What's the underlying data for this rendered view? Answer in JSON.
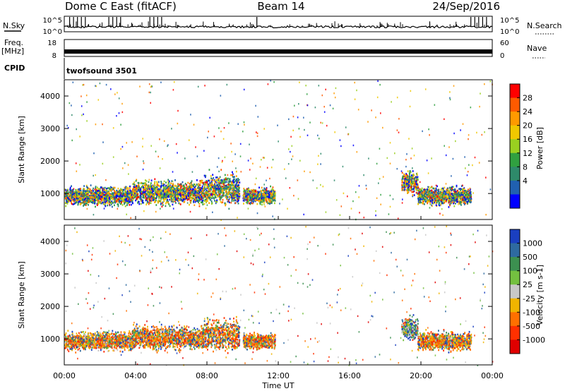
{
  "header": {
    "radar": "Dome C East (fitACF)",
    "beam": "Beam 14",
    "date": "24/Sep/2016"
  },
  "panels": {
    "nsky": {
      "label": "N.Sky",
      "ticks": [
        "10^5",
        "10^0"
      ]
    },
    "nsearch": {
      "label": "N.Search",
      "ticks": [
        "10^5",
        "10^0"
      ]
    },
    "freq": {
      "label_line1": "Freq.",
      "label_line2": "[MHz]",
      "ticks": [
        "18",
        "8"
      ]
    },
    "nave": {
      "label": "Nave",
      "ticks": [
        "60",
        "0"
      ]
    },
    "cpid": {
      "label": "CPID",
      "value": "twofsound 3501"
    }
  },
  "xaxis": {
    "label": "Time UT",
    "ticks": [
      "00:00",
      "04:00",
      "08:00",
      "12:00",
      "16:00",
      "20:00",
      "00:00"
    ],
    "range_hours": [
      0,
      24
    ]
  },
  "chart_data": [
    {
      "type": "heatmap",
      "ylabel": "Slant Range [km]",
      "yticks": [
        1000,
        2000,
        3000,
        4000
      ],
      "ylim": [
        200,
        4500
      ],
      "colorbar": {
        "label": "Power [dB]",
        "ticks": [
          "28",
          "24",
          "20",
          "16",
          "12",
          "8",
          "4"
        ],
        "colors": [
          "#ff0000",
          "#ff5a00",
          "#ff9a00",
          "#f0c800",
          "#9ad020",
          "#30a040",
          "#2e8a6a",
          "#2060b0",
          "#0000ff"
        ]
      },
      "scatter_regions": [
        {
          "t_start": 0.0,
          "t_end": 3.8,
          "range_center": 950,
          "range_width": 350
        },
        {
          "t_start": 3.8,
          "t_end": 7.8,
          "range_center": 1050,
          "range_width": 450
        },
        {
          "t_start": 7.8,
          "t_end": 9.8,
          "range_center": 1150,
          "range_width": 600
        },
        {
          "t_start": 10.0,
          "t_end": 11.8,
          "range_center": 950,
          "range_width": 300
        },
        {
          "t_start": 18.9,
          "t_end": 19.8,
          "range_center": 1350,
          "range_width": 450
        },
        {
          "t_start": 19.8,
          "t_end": 22.8,
          "range_center": 950,
          "range_width": 350
        }
      ]
    },
    {
      "type": "heatmap",
      "ylabel": "Slant Range [km]",
      "yticks": [
        1000,
        2000,
        3000,
        4000
      ],
      "ylim": [
        200,
        4500
      ],
      "colorbar": {
        "label": "Velocity [m s-1]",
        "ticks": [
          "1000",
          "500",
          "100",
          "25",
          "-25",
          "-100",
          "-500",
          "-1000"
        ],
        "colors": [
          "#1a3fc0",
          "#2e6aa0",
          "#3c9050",
          "#74c040",
          "#c8c8c8",
          "#f0b400",
          "#ff7000",
          "#ff3000",
          "#e00000"
        ]
      },
      "scatter_regions": [
        {
          "t_start": 0.0,
          "t_end": 3.8,
          "range_center": 950,
          "range_width": 350
        },
        {
          "t_start": 3.8,
          "t_end": 7.8,
          "range_center": 1050,
          "range_width": 450
        },
        {
          "t_start": 7.8,
          "t_end": 9.8,
          "range_center": 1150,
          "range_width": 600
        },
        {
          "t_start": 10.0,
          "t_end": 11.8,
          "range_center": 950,
          "range_width": 300
        },
        {
          "t_start": 18.9,
          "t_end": 19.8,
          "range_center": 1350,
          "range_width": 450
        },
        {
          "t_start": 19.8,
          "t_end": 22.8,
          "range_center": 950,
          "range_width": 350
        }
      ]
    }
  ]
}
